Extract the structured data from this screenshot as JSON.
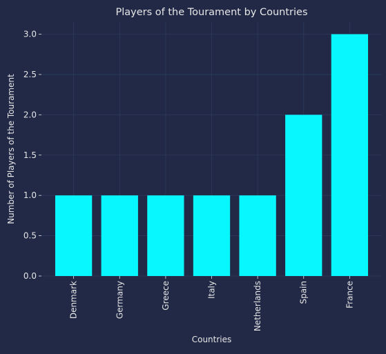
{
  "chart_data": {
    "type": "bar",
    "title": "Players of the Tourament by Countries",
    "xlabel": "Countries",
    "ylabel": "Number of Players of the Tourament",
    "categories": [
      "Denmark",
      "Germany",
      "Greece",
      "Italy",
      "Netherlands",
      "Spain",
      "France"
    ],
    "values": [
      1,
      1,
      1,
      1,
      1,
      2,
      3
    ],
    "ylim": [
      0,
      3.15
    ],
    "yticks": [
      "0.0",
      "0.5",
      "1.0",
      "1.5",
      "2.0",
      "2.5",
      "3.0"
    ],
    "grid": true,
    "bar_color": "#08F7FE",
    "background_color": "#212946",
    "grid_color": "#2C3A5E",
    "text_color": "#E6E6E6"
  }
}
